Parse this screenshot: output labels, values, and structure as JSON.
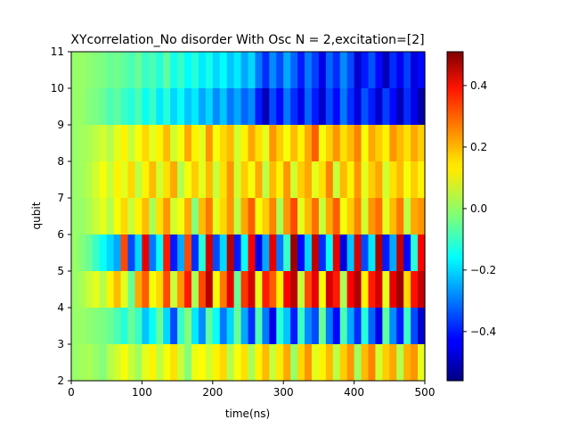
{
  "chart_data": {
    "type": "heatmap",
    "title": "XYcorrelation_No disorder With Osc N =  2,excitation=[2]",
    "xlabel": "time(ns)",
    "ylabel": "qubit",
    "xlim": [
      0,
      500
    ],
    "ylim": [
      2,
      11
    ],
    "x_ticks": [
      0,
      100,
      200,
      300,
      400,
      500
    ],
    "y_ticks": [
      2,
      3,
      4,
      5,
      6,
      7,
      8,
      9,
      10,
      11
    ],
    "colorbar": {
      "colormap": "jet",
      "range": [
        -0.56,
        0.51
      ],
      "ticks": [
        -0.4,
        -0.2,
        0.0,
        0.2,
        0.4
      ],
      "tick_labels": [
        "−0.4",
        "−0.2",
        "0.0",
        "0.2",
        "0.4"
      ]
    },
    "rows": [
      {
        "qubit_range": [
          2,
          3
        ],
        "values": [
          0.0,
          0.01,
          0.02,
          0.0,
          -0.02,
          0.03,
          0.06,
          0.1,
          0.05,
          0.01,
          0.08,
          0.12,
          0.04,
          0.1,
          0.14,
          0.05,
          -0.02,
          0.09,
          0.11,
          0.06,
          0.12,
          0.15,
          0.03,
          0.1,
          0.14,
          0.02,
          0.12,
          0.18,
          0.05,
          0.13,
          0.2,
          0.0,
          0.15,
          0.22,
          0.08,
          0.12,
          0.18,
          0.04,
          0.16,
          0.22,
          0.01,
          0.18,
          0.24,
          0.06,
          0.16,
          0.2,
          0.03,
          0.19,
          0.22,
          0.08
        ]
      },
      {
        "qubit_range": [
          3,
          4
        ],
        "values": [
          0.0,
          0.0,
          -0.01,
          -0.02,
          -0.03,
          -0.05,
          -0.08,
          -0.12,
          -0.05,
          -0.1,
          -0.22,
          -0.15,
          -0.05,
          -0.2,
          -0.35,
          -0.1,
          -0.02,
          -0.18,
          -0.28,
          -0.06,
          -0.15,
          -0.3,
          -0.2,
          -0.05,
          -0.25,
          -0.38,
          -0.08,
          -0.3,
          -0.45,
          -0.12,
          -0.22,
          -0.4,
          -0.1,
          -0.28,
          -0.35,
          -0.05,
          -0.3,
          -0.42,
          -0.08,
          -0.25,
          -0.38,
          -0.12,
          -0.32,
          -0.45,
          -0.06,
          -0.28,
          -0.4,
          -0.1,
          -0.35,
          -0.48
        ]
      },
      {
        "qubit_range": [
          4,
          5
        ],
        "values": [
          0.0,
          0.02,
          0.05,
          0.08,
          0.03,
          0.12,
          0.18,
          0.08,
          -0.05,
          0.2,
          0.28,
          0.1,
          0.15,
          0.3,
          0.05,
          0.22,
          0.35,
          0.02,
          0.3,
          0.45,
          0.1,
          0.25,
          0.4,
          -0.05,
          0.32,
          0.42,
          0.08,
          0.35,
          0.28,
          0.12,
          0.38,
          0.45,
          0.05,
          0.3,
          0.4,
          0.1,
          0.42,
          0.35,
          0.02,
          0.38,
          0.46,
          0.12,
          0.35,
          0.42,
          0.08,
          0.4,
          0.48,
          0.15,
          0.36,
          0.44
        ]
      },
      {
        "qubit_range": [
          5,
          6
        ],
        "values": [
          0.0,
          -0.02,
          -0.05,
          -0.1,
          -0.15,
          -0.2,
          -0.25,
          0.3,
          -0.35,
          -0.2,
          0.4,
          -0.3,
          -0.15,
          0.35,
          -0.4,
          -0.25,
          0.3,
          -0.38,
          -0.12,
          0.42,
          -0.35,
          -0.2,
          0.45,
          -0.4,
          -0.15,
          0.38,
          -0.45,
          -0.25,
          0.4,
          -0.3,
          -0.1,
          0.48,
          -0.42,
          -0.2,
          0.44,
          -0.38,
          -0.15,
          0.4,
          -0.46,
          -0.22,
          0.42,
          -0.35,
          -0.18,
          0.46,
          -0.4,
          -0.25,
          0.44,
          -0.42,
          -0.12,
          0.38
        ]
      },
      {
        "qubit_range": [
          6,
          7
        ],
        "values": [
          0.0,
          0.0,
          0.02,
          0.05,
          0.08,
          0.03,
          0.1,
          0.15,
          0.05,
          0.12,
          0.18,
          0.02,
          0.14,
          0.22,
          0.06,
          0.1,
          0.2,
          -0.02,
          0.18,
          0.25,
          0.08,
          0.15,
          0.22,
          0.04,
          0.2,
          0.28,
          0.1,
          0.16,
          0.24,
          0.02,
          0.22,
          0.3,
          0.08,
          0.18,
          0.26,
          0.05,
          0.2,
          0.28,
          0.1,
          0.16,
          0.24,
          0.06,
          0.22,
          0.26,
          0.08,
          0.18,
          0.25,
          0.04,
          0.2,
          0.22
        ]
      },
      {
        "qubit_range": [
          7,
          8
        ],
        "values": [
          0.0,
          0.01,
          0.03,
          0.06,
          0.1,
          0.05,
          0.12,
          0.08,
          0.15,
          0.04,
          0.12,
          0.18,
          0.06,
          0.14,
          0.2,
          0.03,
          0.1,
          0.16,
          0.08,
          0.18,
          0.05,
          0.14,
          0.22,
          0.06,
          0.16,
          0.1,
          0.2,
          0.04,
          0.18,
          0.12,
          0.22,
          0.06,
          0.16,
          0.2,
          0.08,
          0.14,
          0.24,
          0.05,
          0.18,
          0.12,
          0.22,
          0.08,
          0.16,
          0.2,
          0.06,
          0.14,
          0.18,
          0.1,
          0.16,
          0.12
        ]
      },
      {
        "qubit_range": [
          8,
          9
        ],
        "values": [
          0.0,
          0.01,
          0.02,
          0.04,
          0.06,
          0.03,
          0.08,
          0.12,
          0.05,
          0.1,
          0.15,
          0.08,
          0.12,
          0.18,
          0.06,
          0.1,
          0.2,
          0.12,
          0.08,
          0.22,
          0.1,
          0.15,
          0.18,
          0.06,
          0.12,
          0.2,
          0.14,
          0.08,
          0.22,
          0.16,
          0.1,
          0.18,
          0.12,
          0.2,
          0.28,
          0.1,
          0.16,
          0.22,
          0.14,
          0.18,
          0.24,
          0.1,
          0.2,
          0.16,
          0.12,
          0.22,
          0.18,
          0.14,
          0.2,
          0.16
        ]
      },
      {
        "qubit_range": [
          9,
          10
        ],
        "values": [
          0.0,
          0.0,
          -0.02,
          -0.03,
          -0.05,
          -0.08,
          -0.06,
          -0.1,
          -0.12,
          -0.08,
          -0.15,
          -0.1,
          -0.18,
          -0.12,
          -0.2,
          -0.15,
          -0.22,
          -0.18,
          -0.25,
          -0.2,
          -0.28,
          -0.22,
          -0.3,
          -0.25,
          -0.32,
          -0.28,
          -0.4,
          -0.5,
          -0.35,
          -0.42,
          -0.3,
          -0.38,
          -0.45,
          -0.32,
          -0.4,
          -0.48,
          -0.35,
          -0.42,
          -0.3,
          -0.38,
          -0.46,
          -0.34,
          -0.4,
          -0.48,
          -0.36,
          -0.42,
          -0.5,
          -0.38,
          -0.45,
          -0.52
        ]
      },
      {
        "qubit_range": [
          10,
          11
        ],
        "values": [
          0.0,
          0.0,
          -0.01,
          -0.02,
          -0.03,
          -0.05,
          -0.04,
          -0.06,
          -0.08,
          -0.05,
          -0.1,
          -0.08,
          -0.12,
          -0.06,
          -0.14,
          -0.1,
          -0.16,
          -0.12,
          -0.18,
          -0.14,
          -0.2,
          -0.16,
          -0.22,
          -0.18,
          -0.25,
          -0.2,
          -0.3,
          -0.38,
          -0.28,
          -0.35,
          -0.25,
          -0.32,
          -0.4,
          -0.3,
          -0.36,
          -0.45,
          -0.32,
          -0.38,
          -0.28,
          -0.35,
          -0.48,
          -0.4,
          -0.34,
          -0.42,
          -0.5,
          -0.38,
          -0.44,
          -0.36,
          -0.46,
          -0.42
        ]
      }
    ]
  }
}
